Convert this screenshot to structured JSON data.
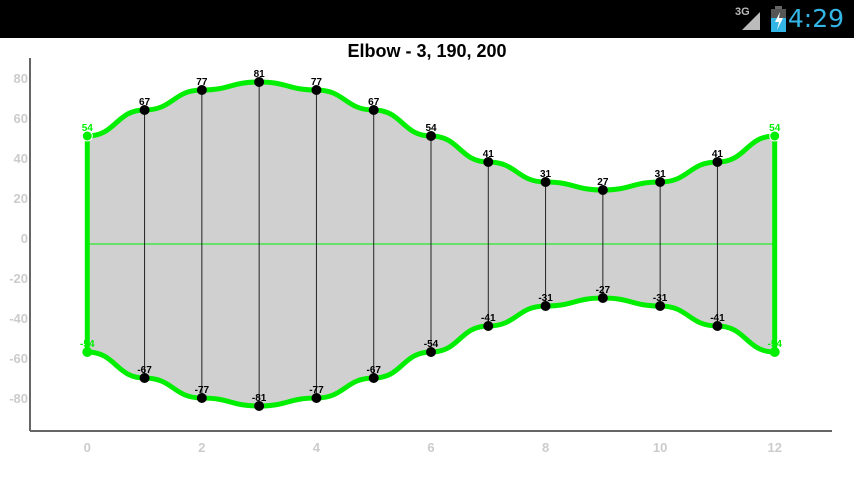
{
  "status_bar": {
    "network": "3G",
    "time": "4:29",
    "battery_icon": "battery-charging-icon",
    "signal_icon": "signal-icon",
    "clock_color": "#33b5e5"
  },
  "chart_data": {
    "type": "area",
    "title": "Elbow - 3, 190, 200",
    "xlim": [
      -1,
      13
    ],
    "ylim": [
      -96.5,
      90
    ],
    "x_ticks": [
      0,
      2,
      4,
      6,
      8,
      10,
      12
    ],
    "y_ticks": [
      80,
      60,
      40,
      20,
      0,
      -20,
      -40,
      -60,
      -80
    ],
    "baseline": -3,
    "x": [
      0,
      1,
      2,
      3,
      4,
      5,
      6,
      7,
      8,
      9,
      10,
      11,
      12
    ],
    "series": [
      {
        "values": [
          54,
          67,
          77,
          81,
          77,
          67,
          54,
          41,
          31,
          27,
          31,
          41,
          54
        ]
      },
      {
        "values": [
          -54,
          -67,
          -77,
          -81,
          -77,
          -67,
          -54,
          -41,
          -31,
          -27,
          -31,
          -41,
          -54
        ]
      }
    ],
    "colors": {
      "line": "#00ee00",
      "fill": "#d0d0d0",
      "point": "#000000",
      "endpoint": "#00ee00",
      "axis": "#666666",
      "tick_label": "#cccccc"
    },
    "grid": false
  }
}
